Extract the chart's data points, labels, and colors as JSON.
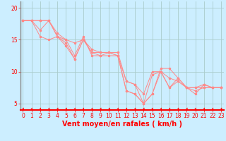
{
  "title": "",
  "xlabel": "Vent moyen/en rafales ( km/h )",
  "ylabel": "",
  "bg_color": "#cceeff",
  "line_color": "#ff8888",
  "grid_color": "#aacccc",
  "axis_color": "#ff0000",
  "left_spine_color": "#888888",
  "tick_color": "#ff0000",
  "label_color": "#ff0000",
  "xlim": [
    -0.3,
    23.3
  ],
  "ylim": [
    4.0,
    21.0
  ],
  "yticks": [
    5,
    10,
    15,
    20
  ],
  "xticks": [
    0,
    1,
    2,
    3,
    4,
    5,
    6,
    7,
    8,
    9,
    10,
    11,
    12,
    13,
    14,
    15,
    16,
    17,
    18,
    19,
    20,
    21,
    22,
    23
  ],
  "series": [
    [
      18.0,
      18.0,
      16.5,
      18.0,
      15.5,
      14.0,
      12.0,
      15.0,
      13.0,
      13.0,
      13.0,
      12.5,
      7.0,
      6.5,
      5.0,
      6.5,
      10.5,
      10.5,
      9.0,
      7.5,
      6.5,
      8.0,
      7.5,
      7.5
    ],
    [
      18.0,
      18.0,
      18.0,
      18.0,
      16.0,
      15.0,
      14.5,
      15.0,
      13.0,
      12.5,
      13.0,
      12.5,
      8.5,
      8.0,
      6.5,
      10.0,
      10.0,
      7.5,
      8.5,
      7.5,
      7.5,
      7.5,
      7.5,
      7.5
    ],
    [
      18.0,
      18.0,
      15.5,
      15.0,
      15.5,
      15.0,
      12.5,
      15.5,
      12.5,
      12.5,
      12.5,
      12.5,
      7.0,
      6.5,
      5.0,
      6.5,
      10.0,
      9.0,
      8.5,
      7.5,
      7.0,
      7.5,
      7.5,
      7.5
    ],
    [
      18.0,
      18.0,
      18.0,
      18.0,
      15.5,
      14.5,
      12.0,
      15.0,
      13.5,
      13.0,
      13.0,
      13.0,
      8.5,
      8.0,
      5.0,
      9.5,
      10.0,
      7.5,
      9.0,
      7.5,
      7.5,
      8.0,
      7.5,
      7.5
    ]
  ],
  "font_size": 7,
  "xlabel_fontsize": 7,
  "tick_fontsize": 5.5
}
